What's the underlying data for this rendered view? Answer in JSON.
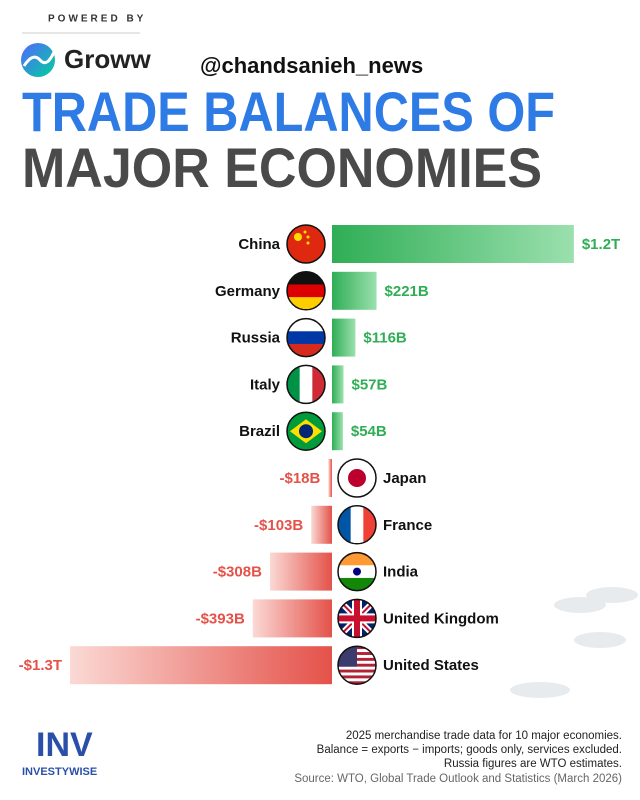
{
  "header": {
    "powered_by": "POWERED BY",
    "brand": "Groww",
    "handle": "@chandsanieh_news",
    "title_lines": [
      "TRADE BALANCES OF",
      "MAJOR ECONOMIES"
    ]
  },
  "chart_data": {
    "type": "diverging-bar",
    "categories": [
      "China",
      "Germany",
      "Russia",
      "Italy",
      "Brazil",
      "Japan",
      "France",
      "India",
      "United Kingdom",
      "United States"
    ],
    "values": [
      1200,
      221,
      116,
      57,
      54,
      -18,
      -103,
      -308,
      -393,
      -1300
    ],
    "value_labels": [
      "$1.2T",
      "$221B",
      "$116B",
      "$57B",
      "$54B",
      "-$18B",
      "-$103B",
      "-$308B",
      "-$393B",
      "-$1.3T"
    ],
    "positive_color": "#2fae55",
    "negative_color": "#e4524a"
  },
  "footer": {
    "notes": [
      "2025 merchandise trade data for 10 major economies.",
      "Balance = exports − imports; goods only, services excluded.",
      "Russia figures are WTO estimates."
    ],
    "source": "Source: WTO, Global Trade Outlook and Statistics (March 2026)",
    "logo_mark": "INV",
    "logo_text": "INVESTYWISE"
  }
}
